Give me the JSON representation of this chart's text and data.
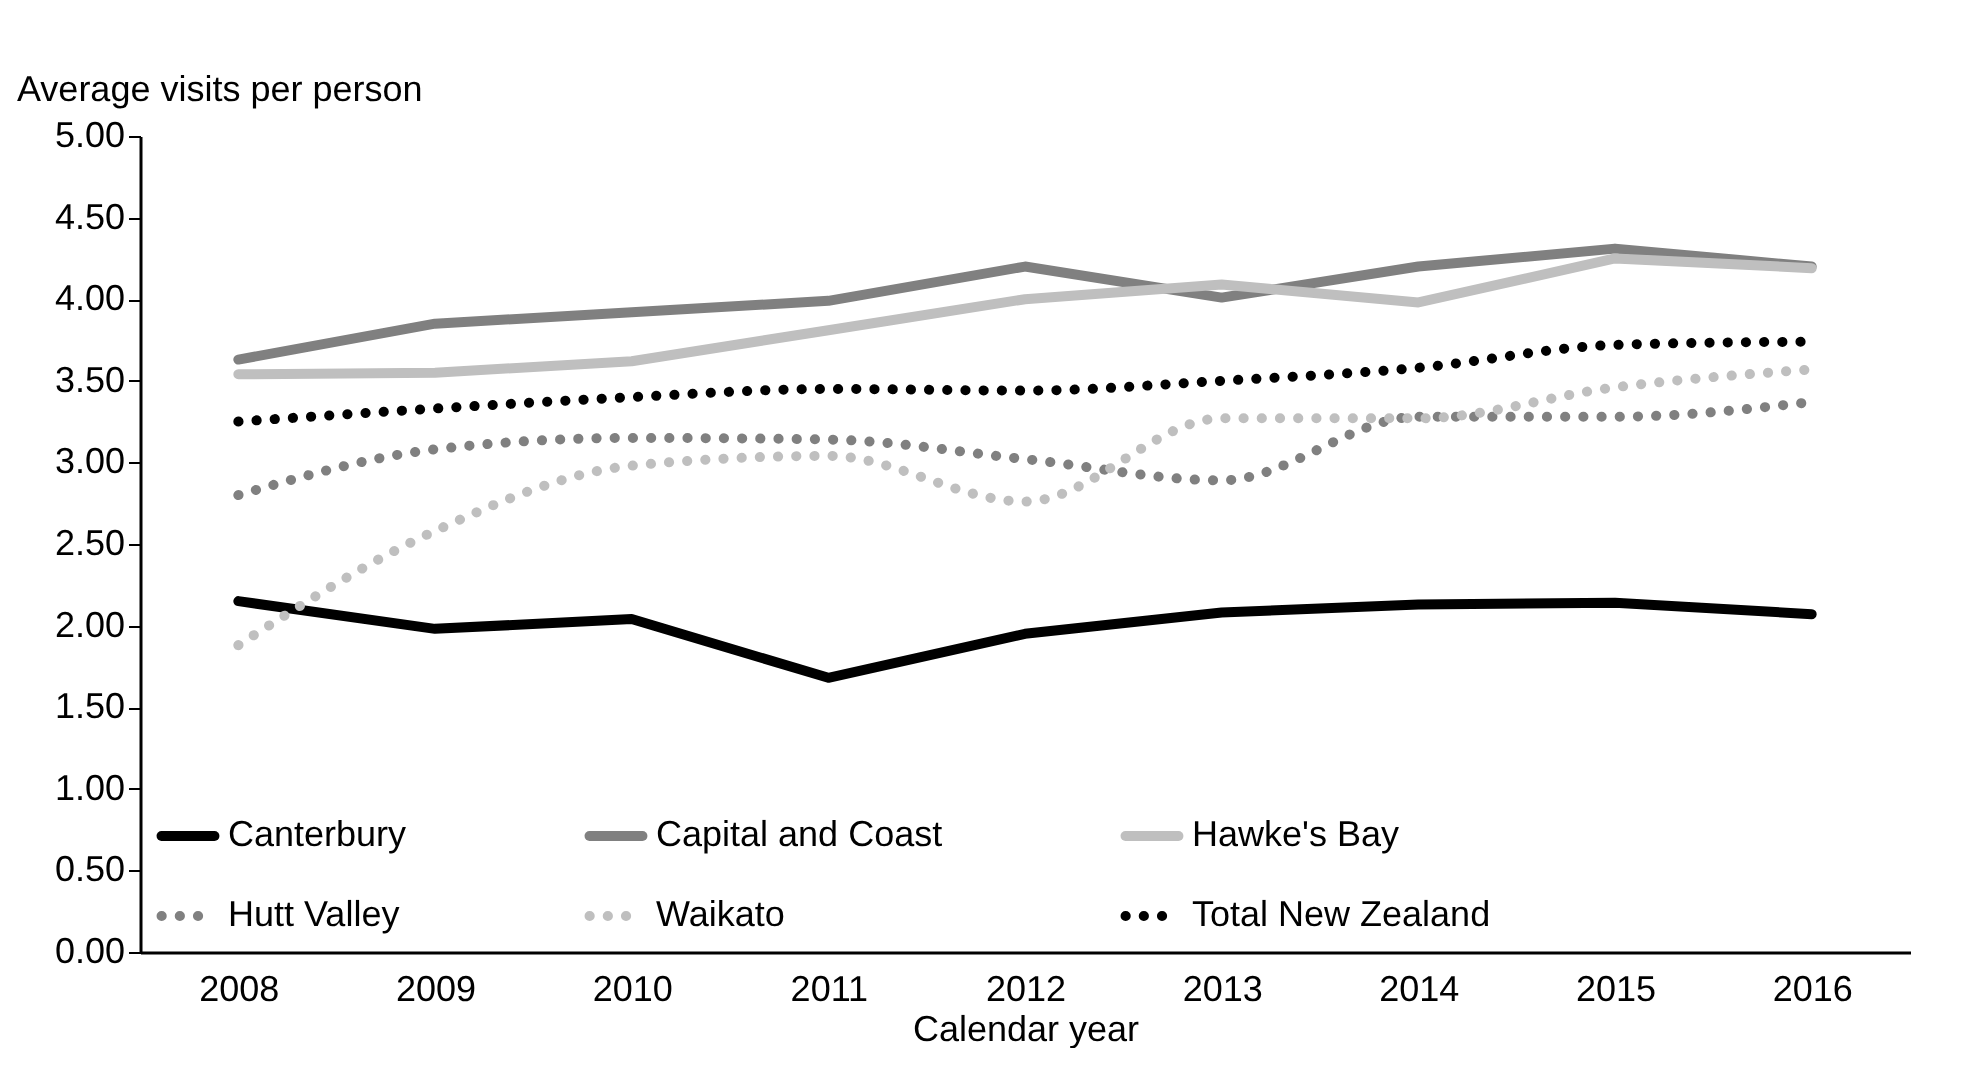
{
  "chart_data": {
    "type": "line",
    "xlabel": "Calendar year",
    "ylabel": "Average visits per person",
    "categories": [
      "2008",
      "2009",
      "2010",
      "2011",
      "2012",
      "2013",
      "2014",
      "2015",
      "2016"
    ],
    "series": [
      {
        "name": "Canterbury",
        "color": "#000000",
        "line_style": "solid",
        "values": [
          2.15,
          1.98,
          2.04,
          1.68,
          1.95,
          2.08,
          2.13,
          2.14,
          2.07
        ]
      },
      {
        "name": "Capital and Coast",
        "color": "#808080",
        "line_style": "solid",
        "values": [
          3.63,
          3.85,
          3.92,
          3.99,
          4.2,
          4.01,
          4.2,
          4.31,
          4.2
        ]
      },
      {
        "name": "Hawke's Bay",
        "color": "#bfbfbf",
        "line_style": "solid",
        "values": [
          3.54,
          3.55,
          3.62,
          3.81,
          4.0,
          4.09,
          3.98,
          4.25,
          4.19
        ]
      },
      {
        "name": "Hutt Valley",
        "color": "#808080",
        "line_style": "dotted",
        "values": [
          2.8,
          3.08,
          3.15,
          3.14,
          3.02,
          2.89,
          3.28,
          3.28,
          3.37
        ]
      },
      {
        "name": "Waikato",
        "color": "#bfbfbf",
        "line_style": "dotted",
        "values": [
          1.88,
          2.58,
          2.98,
          3.04,
          2.76,
          3.27,
          3.27,
          3.46,
          3.57
        ]
      },
      {
        "name": "Total New Zealand",
        "color": "#000000",
        "line_style": "dotted",
        "values": [
          3.25,
          3.33,
          3.4,
          3.45,
          3.44,
          3.5,
          3.58,
          3.72,
          3.74
        ]
      }
    ],
    "ylim": [
      0,
      5
    ],
    "yticks": [
      {
        "value": 0,
        "label": "0.00"
      },
      {
        "value": 0.5,
        "label": "0.50"
      },
      {
        "value": 1,
        "label": "1.00"
      },
      {
        "value": 1.5,
        "label": "1.50"
      },
      {
        "value": 2,
        "label": "2.00"
      },
      {
        "value": 2.5,
        "label": "2.50"
      },
      {
        "value": 3,
        "label": "3.00"
      },
      {
        "value": 3.5,
        "label": "3.50"
      },
      {
        "value": 4,
        "label": "4.00"
      },
      {
        "value": 4.5,
        "label": "4.50"
      },
      {
        "value": 5,
        "label": "5.00"
      }
    ],
    "grid": false,
    "legend": "bottom"
  }
}
